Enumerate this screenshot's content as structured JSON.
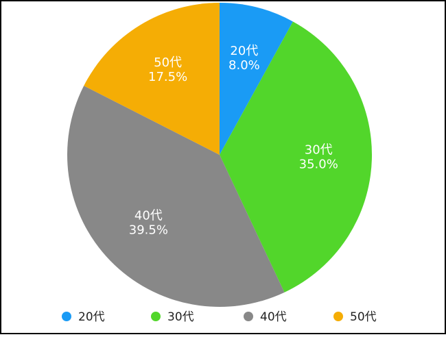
{
  "chart_data": {
    "type": "pie",
    "categories": [
      "20代",
      "30代",
      "40代",
      "50代"
    ],
    "values": [
      8.0,
      35.0,
      39.5,
      17.5
    ],
    "value_labels": [
      "8.0%",
      "35.0%",
      "39.5%",
      "17.5%"
    ],
    "colors": [
      "#1a9bf5",
      "#52d62b",
      "#888888",
      "#f5ad05"
    ],
    "legend": "bottom"
  }
}
